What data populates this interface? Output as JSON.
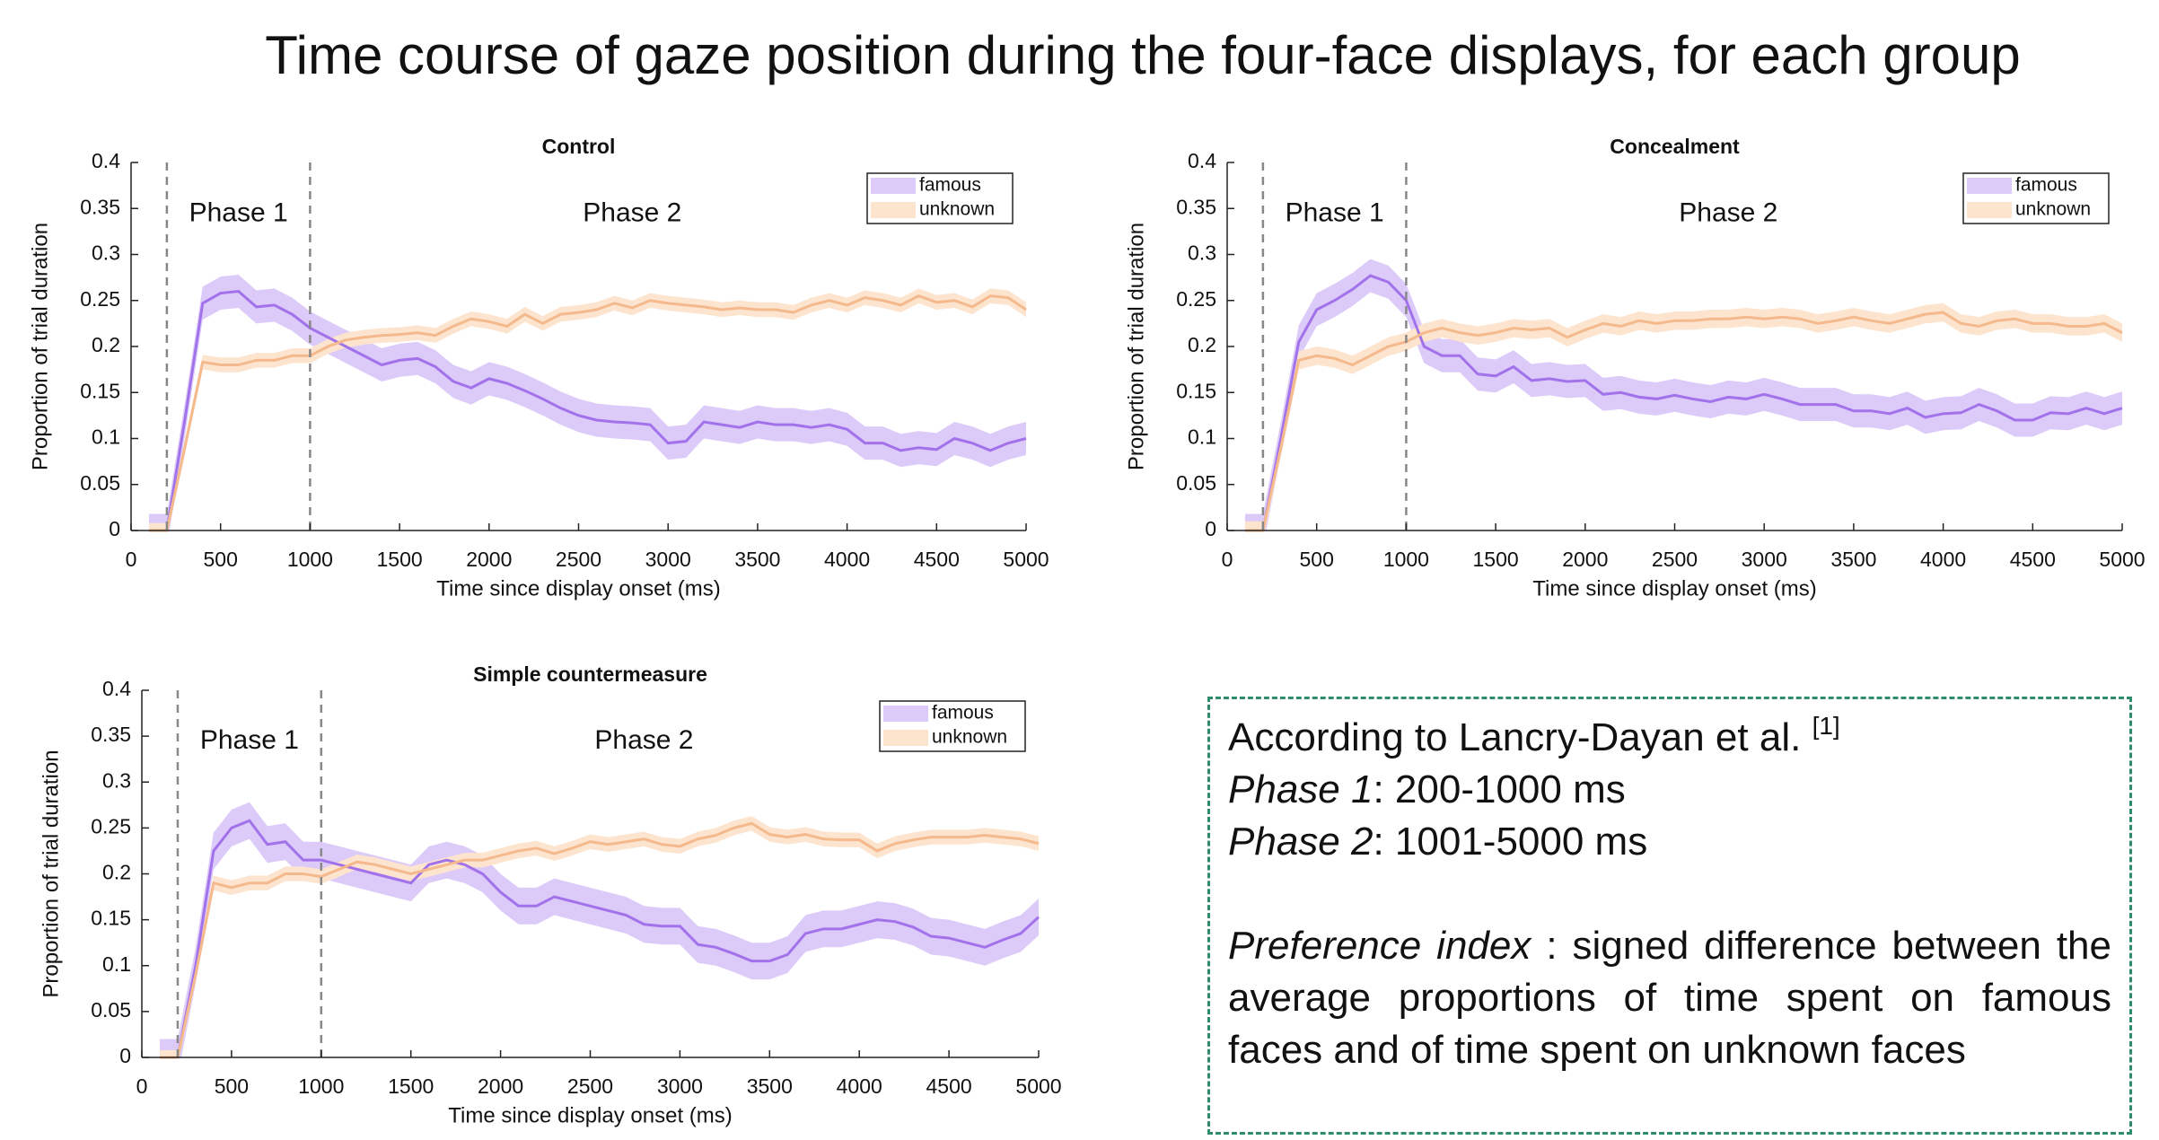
{
  "title": "Time course of gaze position during the four-face displays, for each group",
  "chart_data": [
    {
      "type": "line",
      "title": "Control",
      "xlabel": "Time since display onset (ms)",
      "ylabel": "Proportion of trial duration",
      "xlim": [
        0,
        5000
      ],
      "ylim": [
        0,
        0.4
      ],
      "xticks": [
        0,
        500,
        1000,
        1500,
        2000,
        2500,
        3000,
        3500,
        4000,
        4500,
        5000
      ],
      "yticks": [
        0,
        0.05,
        0.1,
        0.15,
        0.2,
        0.25,
        0.3,
        0.35,
        0.4
      ],
      "vlines": [
        200,
        1000
      ],
      "annotations": [
        "Phase 1",
        "Phase 2"
      ],
      "legend": "northeast",
      "x": [
        100,
        200,
        300,
        400,
        500,
        600,
        700,
        800,
        900,
        1000,
        1100,
        1200,
        1300,
        1400,
        1500,
        1600,
        1700,
        1800,
        1900,
        2000,
        2100,
        2200,
        2300,
        2400,
        2500,
        2600,
        2700,
        2800,
        2900,
        3000,
        3100,
        3200,
        3300,
        3400,
        3500,
        3600,
        3700,
        3800,
        3900,
        4000,
        4100,
        4200,
        4300,
        4400,
        4500,
        4600,
        4700,
        4800,
        4900,
        5000
      ],
      "series": [
        {
          "name": "famous",
          "color": "#a272ea",
          "band_color": "#dccaf9",
          "error": 0.018,
          "values": [
            0,
            0,
            0.12,
            0.247,
            0.258,
            0.26,
            0.243,
            0.245,
            0.235,
            0.22,
            0.21,
            0.2,
            0.19,
            0.18,
            0.185,
            0.187,
            0.178,
            0.162,
            0.155,
            0.165,
            0.16,
            0.152,
            0.143,
            0.133,
            0.125,
            0.12,
            0.118,
            0.117,
            0.115,
            0.095,
            0.097,
            0.118,
            0.115,
            0.112,
            0.118,
            0.115,
            0.115,
            0.112,
            0.115,
            0.11,
            0.095,
            0.095,
            0.087,
            0.09,
            0.088,
            0.1,
            0.095,
            0.087,
            0.095,
            0.1
          ]
        },
        {
          "name": "unknown",
          "color": "#f4b98c",
          "band_color": "#fde4cf",
          "error": 0.008,
          "values": [
            0,
            0,
            0.09,
            0.183,
            0.18,
            0.18,
            0.185,
            0.185,
            0.19,
            0.19,
            0.2,
            0.207,
            0.21,
            0.212,
            0.213,
            0.215,
            0.212,
            0.222,
            0.23,
            0.227,
            0.222,
            0.235,
            0.225,
            0.235,
            0.237,
            0.24,
            0.247,
            0.242,
            0.25,
            0.247,
            0.245,
            0.243,
            0.24,
            0.242,
            0.24,
            0.24,
            0.237,
            0.245,
            0.25,
            0.245,
            0.253,
            0.25,
            0.245,
            0.255,
            0.248,
            0.25,
            0.243,
            0.255,
            0.253,
            0.24
          ]
        }
      ]
    },
    {
      "type": "line",
      "title": "Concealment",
      "xlabel": "Time since display onset (ms)",
      "ylabel": "Proportion of trial duration",
      "xlim": [
        0,
        5000
      ],
      "ylim": [
        0,
        0.4
      ],
      "xticks": [
        0,
        500,
        1000,
        1500,
        2000,
        2500,
        3000,
        3500,
        4000,
        4500,
        5000
      ],
      "yticks": [
        0,
        0.05,
        0.1,
        0.15,
        0.2,
        0.25,
        0.3,
        0.35,
        0.4
      ],
      "vlines": [
        200,
        1000
      ],
      "annotations": [
        "Phase 1",
        "Phase 2"
      ],
      "legend": "northeast",
      "x": [
        100,
        200,
        300,
        400,
        500,
        600,
        700,
        800,
        900,
        1000,
        1100,
        1200,
        1300,
        1400,
        1500,
        1600,
        1700,
        1800,
        1900,
        2000,
        2100,
        2200,
        2300,
        2400,
        2500,
        2600,
        2700,
        2800,
        2900,
        3000,
        3100,
        3200,
        3300,
        3400,
        3500,
        3600,
        3700,
        3800,
        3900,
        4000,
        4100,
        4200,
        4300,
        4400,
        4500,
        4600,
        4700,
        4800,
        4900,
        5000
      ],
      "series": [
        {
          "name": "famous",
          "color": "#a272ea",
          "band_color": "#dccaf9",
          "error": 0.018,
          "values": [
            0,
            0,
            0.1,
            0.205,
            0.24,
            0.25,
            0.262,
            0.277,
            0.27,
            0.25,
            0.2,
            0.19,
            0.19,
            0.17,
            0.168,
            0.178,
            0.163,
            0.165,
            0.162,
            0.163,
            0.148,
            0.15,
            0.145,
            0.143,
            0.147,
            0.143,
            0.14,
            0.145,
            0.143,
            0.148,
            0.143,
            0.137,
            0.137,
            0.137,
            0.13,
            0.13,
            0.127,
            0.133,
            0.123,
            0.127,
            0.128,
            0.137,
            0.13,
            0.12,
            0.12,
            0.128,
            0.127,
            0.133,
            0.127,
            0.133
          ]
        },
        {
          "name": "unknown",
          "color": "#f4b98c",
          "band_color": "#fde4cf",
          "error": 0.01,
          "values": [
            0,
            0,
            0.09,
            0.185,
            0.19,
            0.187,
            0.18,
            0.19,
            0.2,
            0.205,
            0.215,
            0.22,
            0.215,
            0.212,
            0.215,
            0.22,
            0.218,
            0.22,
            0.21,
            0.218,
            0.225,
            0.222,
            0.228,
            0.225,
            0.228,
            0.228,
            0.23,
            0.23,
            0.232,
            0.23,
            0.232,
            0.23,
            0.225,
            0.228,
            0.232,
            0.228,
            0.225,
            0.23,
            0.235,
            0.237,
            0.225,
            0.222,
            0.228,
            0.23,
            0.225,
            0.225,
            0.222,
            0.222,
            0.225,
            0.215
          ]
        }
      ]
    },
    {
      "type": "line",
      "title": "Simple countermeasure",
      "xlabel": "Time since display onset (ms)",
      "ylabel": "Proportion of trial duration",
      "xlim": [
        0,
        5000
      ],
      "ylim": [
        0,
        0.4
      ],
      "xticks": [
        0,
        500,
        1000,
        1500,
        2000,
        2500,
        3000,
        3500,
        4000,
        4500,
        5000
      ],
      "yticks": [
        0,
        0.05,
        0.1,
        0.15,
        0.2,
        0.25,
        0.3,
        0.35,
        0.4
      ],
      "vlines": [
        200,
        1000
      ],
      "annotations": [
        "Phase 1",
        "Phase 2"
      ],
      "legend": "northeast",
      "x": [
        100,
        200,
        300,
        400,
        500,
        600,
        700,
        800,
        900,
        1000,
        1100,
        1200,
        1300,
        1400,
        1500,
        1600,
        1700,
        1800,
        1900,
        2000,
        2100,
        2200,
        2300,
        2400,
        2500,
        2600,
        2700,
        2800,
        2900,
        3000,
        3100,
        3200,
        3300,
        3400,
        3500,
        3600,
        3700,
        3800,
        3900,
        4000,
        4100,
        4200,
        4300,
        4400,
        4500,
        4600,
        4700,
        4800,
        4900,
        5000
      ],
      "series": [
        {
          "name": "famous",
          "color": "#a272ea",
          "band_color": "#dccaf9",
          "error": 0.02,
          "values": [
            0,
            0,
            0.1,
            0.225,
            0.25,
            0.258,
            0.232,
            0.235,
            0.215,
            0.215,
            0.21,
            0.205,
            0.2,
            0.195,
            0.19,
            0.21,
            0.215,
            0.21,
            0.2,
            0.18,
            0.165,
            0.165,
            0.175,
            0.17,
            0.165,
            0.16,
            0.155,
            0.145,
            0.143,
            0.143,
            0.123,
            0.12,
            0.113,
            0.105,
            0.105,
            0.112,
            0.135,
            0.14,
            0.14,
            0.145,
            0.15,
            0.148,
            0.142,
            0.132,
            0.13,
            0.125,
            0.12,
            0.128,
            0.135,
            0.153
          ]
        },
        {
          "name": "unknown",
          "color": "#f4b98c",
          "band_color": "#fde4cf",
          "error": 0.008,
          "values": [
            0,
            0,
            0.09,
            0.19,
            0.185,
            0.19,
            0.19,
            0.2,
            0.2,
            0.197,
            0.205,
            0.213,
            0.21,
            0.205,
            0.2,
            0.205,
            0.21,
            0.215,
            0.215,
            0.22,
            0.225,
            0.228,
            0.222,
            0.228,
            0.235,
            0.232,
            0.235,
            0.238,
            0.232,
            0.23,
            0.238,
            0.242,
            0.25,
            0.255,
            0.243,
            0.24,
            0.243,
            0.238,
            0.237,
            0.237,
            0.225,
            0.233,
            0.237,
            0.24,
            0.24,
            0.24,
            0.242,
            0.24,
            0.238,
            0.233
          ]
        }
      ]
    }
  ],
  "note": {
    "reference": "According to Lancry-Dayan et al.",
    "citation": "[1]",
    "phase1_term": "Phase 1",
    "phase1_text": ": 200-1000 ms",
    "phase2_term": "Phase 2",
    "phase2_text": ": 1001-5000 ms",
    "index_term": "Preference index",
    "index_text": " : signed difference between the average proportions of time spent on famous faces and of time spent on unknown faces"
  }
}
